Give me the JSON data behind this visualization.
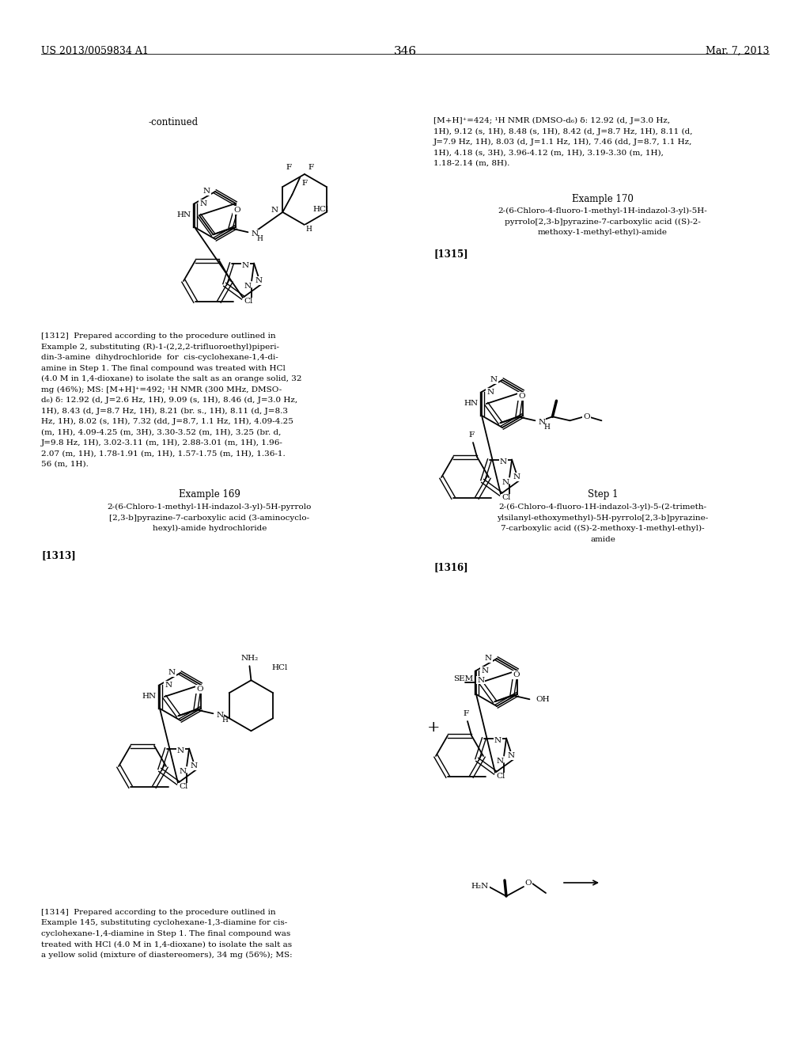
{
  "bg": "#ffffff",
  "header_left": "US 2013/0059834 A1",
  "header_center": "346",
  "header_right": "Mar. 7, 2013"
}
